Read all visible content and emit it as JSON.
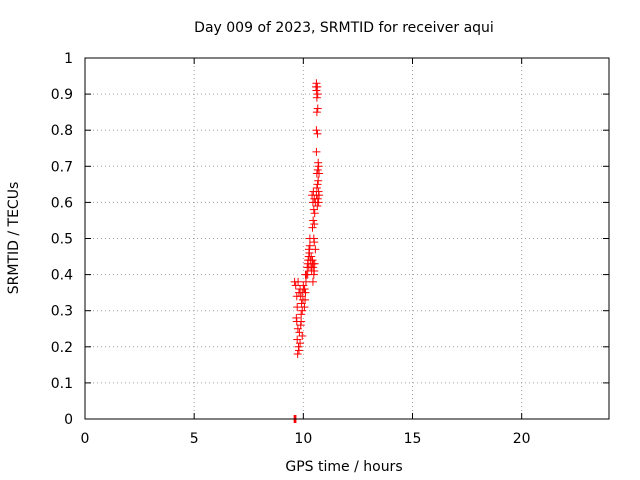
{
  "chart_data": {
    "type": "scatter",
    "title": "Day 009 of 2023, SRMTID for receiver aqui",
    "xlabel": "GPS time / hours",
    "ylabel": "SRMTID / TECUs",
    "xlim": [
      0,
      24
    ],
    "ylim": [
      0,
      1
    ],
    "x_ticks": [
      "0",
      "5",
      "10",
      "15",
      "20"
    ],
    "y_ticks": [
      "0",
      "0.1",
      "0.2",
      "0.3",
      "0.4",
      "0.5",
      "0.6",
      "0.7",
      "0.8",
      "0.9",
      "1"
    ],
    "grid": true,
    "marker": "plus",
    "marker_color": "#ff0000",
    "legend": null,
    "series": [
      {
        "points": [
          [
            9.58,
            0.0
          ],
          [
            9.62,
            0.0
          ],
          [
            9.66,
            0.0
          ],
          [
            9.6,
            0.0
          ],
          [
            9.6,
            0.38
          ],
          [
            9.65,
            0.37
          ],
          [
            9.7,
            0.34
          ],
          [
            9.72,
            0.31
          ],
          [
            9.68,
            0.28
          ],
          [
            9.7,
            0.27
          ],
          [
            9.75,
            0.25
          ],
          [
            9.72,
            0.22
          ],
          [
            9.78,
            0.2
          ],
          [
            9.74,
            0.18
          ],
          [
            9.8,
            0.19
          ],
          [
            9.85,
            0.21
          ],
          [
            9.82,
            0.24
          ],
          [
            9.88,
            0.26
          ],
          [
            9.9,
            0.27
          ],
          [
            9.95,
            0.3
          ],
          [
            9.92,
            0.32
          ],
          [
            9.88,
            0.34
          ],
          [
            9.95,
            0.35
          ],
          [
            10.0,
            0.37
          ],
          [
            10.02,
            0.36
          ],
          [
            9.98,
            0.33
          ],
          [
            10.05,
            0.31
          ],
          [
            10.08,
            0.33
          ],
          [
            10.1,
            0.35
          ],
          [
            10.12,
            0.38
          ],
          [
            10.06,
            0.36
          ],
          [
            9.85,
            0.36
          ],
          [
            9.8,
            0.35
          ],
          [
            9.76,
            0.38
          ],
          [
            10.15,
            0.4
          ],
          [
            10.18,
            0.42
          ],
          [
            10.2,
            0.43
          ],
          [
            10.22,
            0.44
          ],
          [
            10.25,
            0.45
          ],
          [
            10.28,
            0.46
          ],
          [
            10.3,
            0.48
          ],
          [
            10.26,
            0.47
          ],
          [
            10.32,
            0.44
          ],
          [
            10.35,
            0.42
          ],
          [
            10.38,
            0.41
          ],
          [
            10.4,
            0.43
          ],
          [
            10.36,
            0.45
          ],
          [
            10.42,
            0.44
          ],
          [
            10.45,
            0.42
          ],
          [
            10.48,
            0.4
          ],
          [
            10.5,
            0.41
          ],
          [
            10.46,
            0.43
          ],
          [
            10.44,
            0.38
          ],
          [
            10.52,
            0.43
          ],
          [
            10.55,
            0.47
          ],
          [
            10.5,
            0.49
          ],
          [
            10.48,
            0.5
          ],
          [
            10.42,
            0.53
          ],
          [
            10.45,
            0.55
          ],
          [
            10.5,
            0.54
          ],
          [
            10.52,
            0.57
          ],
          [
            10.48,
            0.58
          ],
          [
            10.44,
            0.6
          ],
          [
            10.4,
            0.62
          ],
          [
            10.46,
            0.63
          ],
          [
            10.5,
            0.61
          ],
          [
            10.55,
            0.6
          ],
          [
            10.6,
            0.62
          ],
          [
            10.62,
            0.64
          ],
          [
            10.65,
            0.65
          ],
          [
            10.68,
            0.66
          ],
          [
            10.7,
            0.63
          ],
          [
            10.72,
            0.62
          ],
          [
            10.66,
            0.61
          ],
          [
            10.64,
            0.59
          ],
          [
            10.7,
            0.6
          ],
          [
            10.62,
            0.68
          ],
          [
            10.66,
            0.69
          ],
          [
            10.7,
            0.7
          ],
          [
            10.68,
            0.71
          ],
          [
            10.72,
            0.68
          ],
          [
            10.6,
            0.74
          ],
          [
            10.6,
            0.8
          ],
          [
            10.65,
            0.79
          ],
          [
            10.62,
            0.85
          ],
          [
            10.66,
            0.86
          ],
          [
            10.62,
            0.89
          ],
          [
            10.66,
            0.9
          ],
          [
            10.6,
            0.91
          ],
          [
            10.64,
            0.92
          ],
          [
            10.6,
            0.93
          ],
          [
            10.58,
            0.92
          ],
          [
            10.3,
            0.5
          ],
          [
            10.25,
            0.42
          ],
          [
            10.2,
            0.4
          ],
          [
            10.1,
            0.4
          ],
          [
            9.9,
            0.29
          ],
          [
            9.95,
            0.23
          ]
        ]
      }
    ]
  }
}
